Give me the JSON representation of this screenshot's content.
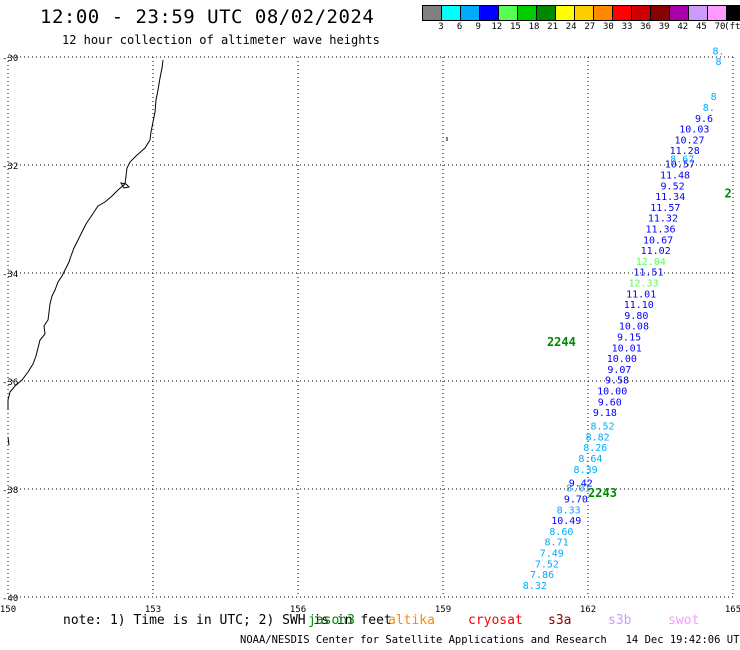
{
  "header": {
    "title": "12:00 - 23:59 UTC 08/02/2024",
    "subtitle": "12 hour collection of altimeter wave heights"
  },
  "legend": {
    "unit": "(ft)",
    "colors": [
      "#808080",
      "#00ffff",
      "#00aaff",
      "#0000ff",
      "#55ff55",
      "#00cc00",
      "#008800",
      "#ffff00",
      "#ffcc00",
      "#ff8800",
      "#ff0000",
      "#cc0000",
      "#880000",
      "#aa00aa",
      "#cc99ff",
      "#ff99ff",
      "#000000"
    ],
    "labels": [
      "3",
      "6",
      "9",
      "12",
      "15",
      "18",
      "21",
      "24",
      "27",
      "30",
      "33",
      "36",
      "39",
      "42",
      "45",
      "70"
    ]
  },
  "map": {
    "lat_ticks": [
      "-30",
      "-32",
      "-34",
      "-36",
      "-38",
      "-40"
    ],
    "lon_ticks": [
      "150",
      "153",
      "156",
      "159",
      "162",
      "165"
    ],
    "lon_range": [
      150,
      165
    ],
    "lat_range": [
      -40,
      -30
    ]
  },
  "tracks": {
    "pass_labels": [
      {
        "text": "2244",
        "lon": 161.45,
        "lat": -35.35,
        "color": "#008800"
      },
      {
        "text": "2243",
        "lon": 162.3,
        "lat": -38.15,
        "color": "#008800"
      },
      {
        "text": "2",
        "lon": 164.9,
        "lat": -32.6,
        "color": "#008800"
      }
    ],
    "readings": [
      {
        "v": "8.32",
        "lon": 160.9,
        "lat": -39.85,
        "c": "#00aaff"
      },
      {
        "v": "7.86",
        "lon": 161.05,
        "lat": -39.65,
        "c": "#00aaff"
      },
      {
        "v": "7.52",
        "lon": 161.15,
        "lat": -39.45,
        "c": "#00aaff"
      },
      {
        "v": "7.49",
        "lon": 161.25,
        "lat": -39.25,
        "c": "#00aaff"
      },
      {
        "v": "8.71",
        "lon": 161.35,
        "lat": -39.05,
        "c": "#00aaff"
      },
      {
        "v": "8.60",
        "lon": 161.45,
        "lat": -38.85,
        "c": "#00aaff"
      },
      {
        "v": "10.49",
        "lon": 161.55,
        "lat": -38.65,
        "c": "#0000ff"
      },
      {
        "v": "8.33",
        "lon": 161.6,
        "lat": -38.45,
        "c": "#00aaff"
      },
      {
        "v": "9.70",
        "lon": 161.75,
        "lat": -38.25,
        "c": "#0000ff"
      },
      {
        "v": "8.01",
        "lon": 161.8,
        "lat": -38.05,
        "c": "#00aaff"
      },
      {
        "v": "9.42",
        "lon": 161.85,
        "lat": -37.95,
        "c": "#0000ff"
      },
      {
        "v": "8.39",
        "lon": 161.95,
        "lat": -37.7,
        "c": "#00aaff"
      },
      {
        "v": "8.64",
        "lon": 162.05,
        "lat": -37.5,
        "c": "#00aaff"
      },
      {
        "v": "8.26",
        "lon": 162.15,
        "lat": -37.3,
        "c": "#00aaff"
      },
      {
        "v": "8.82",
        "lon": 162.2,
        "lat": -37.1,
        "c": "#00aaff"
      },
      {
        "v": "8.52",
        "lon": 162.3,
        "lat": -36.9,
        "c": "#00aaff"
      },
      {
        "v": "9.18",
        "lon": 162.35,
        "lat": -36.65,
        "c": "#0000ff"
      },
      {
        "v": "9.60",
        "lon": 162.45,
        "lat": -36.45,
        "c": "#0000ff"
      },
      {
        "v": "10.00",
        "lon": 162.5,
        "lat": -36.25,
        "c": "#0000ff"
      },
      {
        "v": "9.58",
        "lon": 162.6,
        "lat": -36.05,
        "c": "#0000ff"
      },
      {
        "v": "9.07",
        "lon": 162.65,
        "lat": -35.85,
        "c": "#0000ff"
      },
      {
        "v": "10.00",
        "lon": 162.7,
        "lat": -35.65,
        "c": "#0000ff"
      },
      {
        "v": "10.01",
        "lon": 162.8,
        "lat": -35.45,
        "c": "#0000ff"
      },
      {
        "v": "9.15",
        "lon": 162.85,
        "lat": -35.25,
        "c": "#0000ff"
      },
      {
        "v": "10.08",
        "lon": 162.95,
        "lat": -35.05,
        "c": "#0000ff"
      },
      {
        "v": "9.80",
        "lon": 163.0,
        "lat": -34.85,
        "c": "#0000ff"
      },
      {
        "v": "11.10",
        "lon": 163.05,
        "lat": -34.65,
        "c": "#0000ff"
      },
      {
        "v": "11.01",
        "lon": 163.1,
        "lat": -34.45,
        "c": "#0000ff"
      },
      {
        "v": "12.33",
        "lon": 163.15,
        "lat": -34.25,
        "c": "#55ff55"
      },
      {
        "v": "11.51",
        "lon": 163.25,
        "lat": -34.05,
        "c": "#0000ff"
      },
      {
        "v": "12.04",
        "lon": 163.3,
        "lat": -33.85,
        "c": "#55ff55"
      },
      {
        "v": "11.02",
        "lon": 163.4,
        "lat": -33.65,
        "c": "#0000ff"
      },
      {
        "v": "10.67",
        "lon": 163.45,
        "lat": -33.45,
        "c": "#0000ff"
      },
      {
        "v": "11.36",
        "lon": 163.5,
        "lat": -33.25,
        "c": "#0000ff"
      },
      {
        "v": "11.32",
        "lon": 163.55,
        "lat": -33.05,
        "c": "#0000ff"
      },
      {
        "v": "11.57",
        "lon": 163.6,
        "lat": -32.85,
        "c": "#0000ff"
      },
      {
        "v": "11.34",
        "lon": 163.7,
        "lat": -32.65,
        "c": "#0000ff"
      },
      {
        "v": "9.52",
        "lon": 163.75,
        "lat": -32.45,
        "c": "#0000ff"
      },
      {
        "v": "11.48",
        "lon": 163.8,
        "lat": -32.25,
        "c": "#0000ff"
      },
      {
        "v": "10.57",
        "lon": 163.9,
        "lat": -32.05,
        "c": "#0000ff"
      },
      {
        "v": "8.67",
        "lon": 163.95,
        "lat": -31.95,
        "c": "#00aaff"
      },
      {
        "v": "11.28",
        "lon": 164.0,
        "lat": -31.8,
        "c": "#0000ff"
      },
      {
        "v": "10.27",
        "lon": 164.1,
        "lat": -31.6,
        "c": "#0000ff"
      },
      {
        "v": "10.03",
        "lon": 164.2,
        "lat": -31.4,
        "c": "#0000ff"
      },
      {
        "v": "9.6",
        "lon": 164.4,
        "lat": -31.2,
        "c": "#0000ff"
      },
      {
        "v": "8.",
        "lon": 164.5,
        "lat": -31.0,
        "c": "#00aaff"
      },
      {
        "v": "8",
        "lon": 164.6,
        "lat": -30.8,
        "c": "#00aaff"
      },
      {
        "v": "8",
        "lon": 164.7,
        "lat": -30.15,
        "c": "#00aaff"
      },
      {
        "v": "8.",
        "lon": 164.7,
        "lat": -29.95,
        "c": "#00aaff"
      }
    ]
  },
  "footer": {
    "note": "note: 1) Time is in UTC; 2) SWH is in feet",
    "satellites": [
      {
        "name": "jason3",
        "color": "#008800"
      },
      {
        "name": "altika",
        "color": "#ff8800"
      },
      {
        "name": "cryosat",
        "color": "#ff0000"
      },
      {
        "name": "s3a",
        "color": "#880000"
      },
      {
        "name": "s3b",
        "color": "#cc99ff"
      },
      {
        "name": "swot",
        "color": "#ff99ff"
      }
    ],
    "credit": "NOAA/NESDIS Center for Satellite Applications and Research   14 Dec 19:42:06 UTC 2024"
  }
}
